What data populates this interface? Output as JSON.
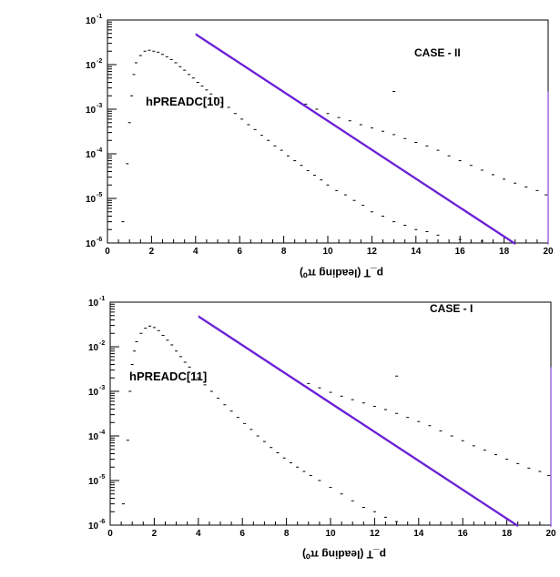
{
  "chart_data": [
    {
      "type": "scatter",
      "case_label": "CASE - II",
      "hist_label": "hPREADC[10]",
      "xlabel": "p_T (leading π⁰)",
      "xlabel_flipped": true,
      "xlim": [
        0,
        20
      ],
      "ylim": [
        1e-06,
        0.1
      ],
      "ylog": true,
      "grid": false,
      "x_ticks": [
        "0",
        "2",
        "4",
        "6",
        "8",
        "10",
        "12",
        "14",
        "16",
        "18",
        "20"
      ],
      "y_ticks": [
        {
          "base": "10",
          "exp": "-1",
          "value": 0.1
        },
        {
          "base": "10",
          "exp": "-2",
          "value": 0.01
        },
        {
          "base": "10",
          "exp": "-3",
          "value": 0.001
        },
        {
          "base": "10",
          "exp": "-4",
          "value": 0.0001
        },
        {
          "base": "10",
          "exp": "-5",
          "value": 1e-05
        },
        {
          "base": "10",
          "exp": "-6",
          "value": 1e-06
        }
      ],
      "series": [
        {
          "kind": "points",
          "color": "#000000",
          "points": [
            [
              0.5,
              1e-06
            ],
            [
              0.7,
              3e-06
            ],
            [
              0.9,
              6e-05
            ],
            [
              1.0,
              0.0005
            ],
            [
              1.1,
              0.002
            ],
            [
              1.2,
              0.006
            ],
            [
              1.3,
              0.011
            ],
            [
              1.5,
              0.016
            ],
            [
              1.7,
              0.02
            ],
            [
              1.9,
              0.021
            ],
            [
              2.1,
              0.02
            ],
            [
              2.3,
              0.019
            ],
            [
              2.5,
              0.017
            ],
            [
              2.7,
              0.015
            ],
            [
              2.9,
              0.013
            ],
            [
              3.1,
              0.011
            ],
            [
              3.3,
              0.009
            ],
            [
              3.5,
              0.0075
            ],
            [
              3.7,
              0.006
            ],
            [
              3.9,
              0.005
            ],
            [
              4.1,
              0.004
            ],
            [
              4.3,
              0.0033
            ],
            [
              4.5,
              0.0027
            ],
            [
              4.7,
              0.0022
            ],
            [
              4.9,
              0.0018
            ],
            [
              5.2,
              0.0014
            ],
            [
              5.5,
              0.0011
            ],
            [
              5.8,
              0.0008
            ],
            [
              6.1,
              0.0006
            ],
            [
              6.4,
              0.00045
            ],
            [
              6.7,
              0.00035
            ],
            [
              7.0,
              0.00026
            ],
            [
              7.3,
              0.0002
            ],
            [
              7.6,
              0.00015
            ],
            [
              7.9,
              0.00012
            ],
            [
              8.2,
              9e-05
            ],
            [
              8.5,
              7e-05
            ],
            [
              8.8,
              5.5e-05
            ],
            [
              9.1,
              4.2e-05
            ],
            [
              9.4,
              3.3e-05
            ],
            [
              9.7,
              2.6e-05
            ],
            [
              10.0,
              2e-05
            ],
            [
              10.4,
              1.5e-05
            ],
            [
              10.8,
              1.2e-05
            ],
            [
              11.2,
              9e-06
            ],
            [
              11.6,
              7e-06
            ],
            [
              12.0,
              5e-06
            ],
            [
              12.5,
              4e-06
            ],
            [
              13.0,
              3e-06
            ],
            [
              13.5,
              2.5e-06
            ],
            [
              14.0,
              2e-06
            ],
            [
              14.5,
              1.8e-06
            ],
            [
              15.0,
              1.5e-06
            ],
            [
              16.0,
              1.2e-06
            ],
            [
              17.0,
              1.1e-06
            ],
            [
              18.0,
              1e-06
            ],
            [
              13.0,
              0.0025
            ]
          ]
        },
        {
          "kind": "points",
          "color": "#000000",
          "points": [
            [
              9.0,
              0.0013
            ],
            [
              9.5,
              0.001
            ],
            [
              10.0,
              0.0008
            ],
            [
              10.5,
              0.00065
            ],
            [
              11.0,
              0.00055
            ],
            [
              11.5,
              0.00045
            ],
            [
              12.0,
              0.00038
            ],
            [
              12.5,
              0.00032
            ],
            [
              13.0,
              0.00027
            ],
            [
              13.5,
              0.00022
            ],
            [
              14.0,
              0.00018
            ],
            [
              14.5,
              0.00015
            ],
            [
              15.0,
              0.00012
            ],
            [
              15.5,
              9e-05
            ],
            [
              16.0,
              7e-05
            ],
            [
              16.5,
              5.5e-05
            ],
            [
              17.0,
              4.3e-05
            ],
            [
              17.5,
              3.4e-05
            ],
            [
              18.0,
              2.7e-05
            ],
            [
              18.5,
              2.2e-05
            ],
            [
              19.0,
              1.8e-05
            ],
            [
              19.5,
              1.5e-05
            ],
            [
              19.9,
              1.2e-05
            ]
          ]
        },
        {
          "kind": "line",
          "color": "#6a1fd6",
          "points": [
            [
              4.0,
              0.05
            ],
            [
              18.5,
              1e-06
            ]
          ]
        },
        {
          "kind": "line",
          "color": "#6a1fd6",
          "points": [
            [
              20.0,
              0.0025
            ],
            [
              20.0,
              1e-06
            ]
          ]
        }
      ]
    },
    {
      "type": "scatter",
      "case_label": "CASE - I",
      "hist_label": "hPREADC[11]",
      "xlabel": "p_T (leading π⁰)",
      "xlabel_flipped": true,
      "xlim": [
        0,
        20
      ],
      "ylim": [
        1e-06,
        0.1
      ],
      "ylog": true,
      "grid": false,
      "x_ticks": [
        "0",
        "2",
        "4",
        "6",
        "8",
        "10",
        "12",
        "14",
        "16",
        "18",
        "20"
      ],
      "y_ticks": [
        {
          "base": "10",
          "exp": "-1",
          "value": 0.1
        },
        {
          "base": "10",
          "exp": "-2",
          "value": 0.01
        },
        {
          "base": "10",
          "exp": "-3",
          "value": 0.001
        },
        {
          "base": "10",
          "exp": "-4",
          "value": 0.0001
        },
        {
          "base": "10",
          "exp": "-5",
          "value": 1e-05
        },
        {
          "base": "10",
          "exp": "-6",
          "value": 1e-06
        }
      ],
      "series": [
        {
          "kind": "points",
          "color": "#000000",
          "points": [
            [
              0.6,
              3e-06
            ],
            [
              0.8,
              8e-05
            ],
            [
              0.9,
              0.001
            ],
            [
              1.0,
              0.004
            ],
            [
              1.1,
              0.008
            ],
            [
              1.2,
              0.013
            ],
            [
              1.4,
              0.02
            ],
            [
              1.6,
              0.026
            ],
            [
              1.8,
              0.029
            ],
            [
              2.0,
              0.027
            ],
            [
              2.2,
              0.023
            ],
            [
              2.4,
              0.018
            ],
            [
              2.6,
              0.014
            ],
            [
              2.8,
              0.011
            ],
            [
              3.0,
              0.008
            ],
            [
              3.2,
              0.006
            ],
            [
              3.4,
              0.0045
            ],
            [
              3.6,
              0.0035
            ],
            [
              3.8,
              0.0026
            ],
            [
              4.0,
              0.002
            ],
            [
              4.3,
              0.0014
            ],
            [
              4.6,
              0.001
            ],
            [
              4.9,
              0.0007
            ],
            [
              5.2,
              0.0005
            ],
            [
              5.5,
              0.00036
            ],
            [
              5.8,
              0.00026
            ],
            [
              6.1,
              0.00019
            ],
            [
              6.4,
              0.00014
            ],
            [
              6.7,
              0.0001
            ],
            [
              7.0,
              7.5e-05
            ],
            [
              7.3,
              5.5e-05
            ],
            [
              7.6,
              4.2e-05
            ],
            [
              7.9,
              3.2e-05
            ],
            [
              8.2,
              2.5e-05
            ],
            [
              8.5,
              2e-05
            ],
            [
              8.8,
              1.6e-05
            ],
            [
              9.1,
              1.3e-05
            ],
            [
              9.5,
              1e-05
            ],
            [
              10.0,
              7e-06
            ],
            [
              10.5,
              5e-06
            ],
            [
              11.0,
              3.5e-06
            ],
            [
              11.5,
              2.5e-06
            ],
            [
              12.0,
              2e-06
            ],
            [
              12.5,
              1.5e-06
            ],
            [
              13.0,
              1.2e-06
            ],
            [
              13.5,
              1e-06
            ],
            [
              13.0,
              0.0022
            ]
          ]
        },
        {
          "kind": "points",
          "color": "#000000",
          "points": [
            [
              9.0,
              0.0015
            ],
            [
              9.5,
              0.0012
            ],
            [
              10.0,
              0.00095
            ],
            [
              10.5,
              0.00078
            ],
            [
              11.0,
              0.00065
            ],
            [
              11.5,
              0.00055
            ],
            [
              12.0,
              0.00046
            ],
            [
              12.5,
              0.00039
            ],
            [
              13.0,
              0.00032
            ],
            [
              13.5,
              0.00026
            ],
            [
              14.0,
              0.00021
            ],
            [
              14.5,
              0.00017
            ],
            [
              15.0,
              0.00013
            ],
            [
              15.5,
              0.0001
            ],
            [
              16.0,
              7.8e-05
            ],
            [
              16.5,
              6e-05
            ],
            [
              17.0,
              4.8e-05
            ],
            [
              17.5,
              3.8e-05
            ],
            [
              18.0,
              3e-05
            ],
            [
              18.5,
              2.4e-05
            ],
            [
              19.0,
              1.9e-05
            ],
            [
              19.5,
              1.6e-05
            ],
            [
              19.9,
              1.3e-05
            ]
          ]
        },
        {
          "kind": "line",
          "color": "#6a1fd6",
          "points": [
            [
              4.0,
              0.05
            ],
            [
              18.5,
              1e-06
            ]
          ]
        },
        {
          "kind": "line",
          "color": "#6a1fd6",
          "points": [
            [
              20.0,
              0.0035
            ],
            [
              20.0,
              1e-06
            ]
          ]
        }
      ]
    }
  ]
}
